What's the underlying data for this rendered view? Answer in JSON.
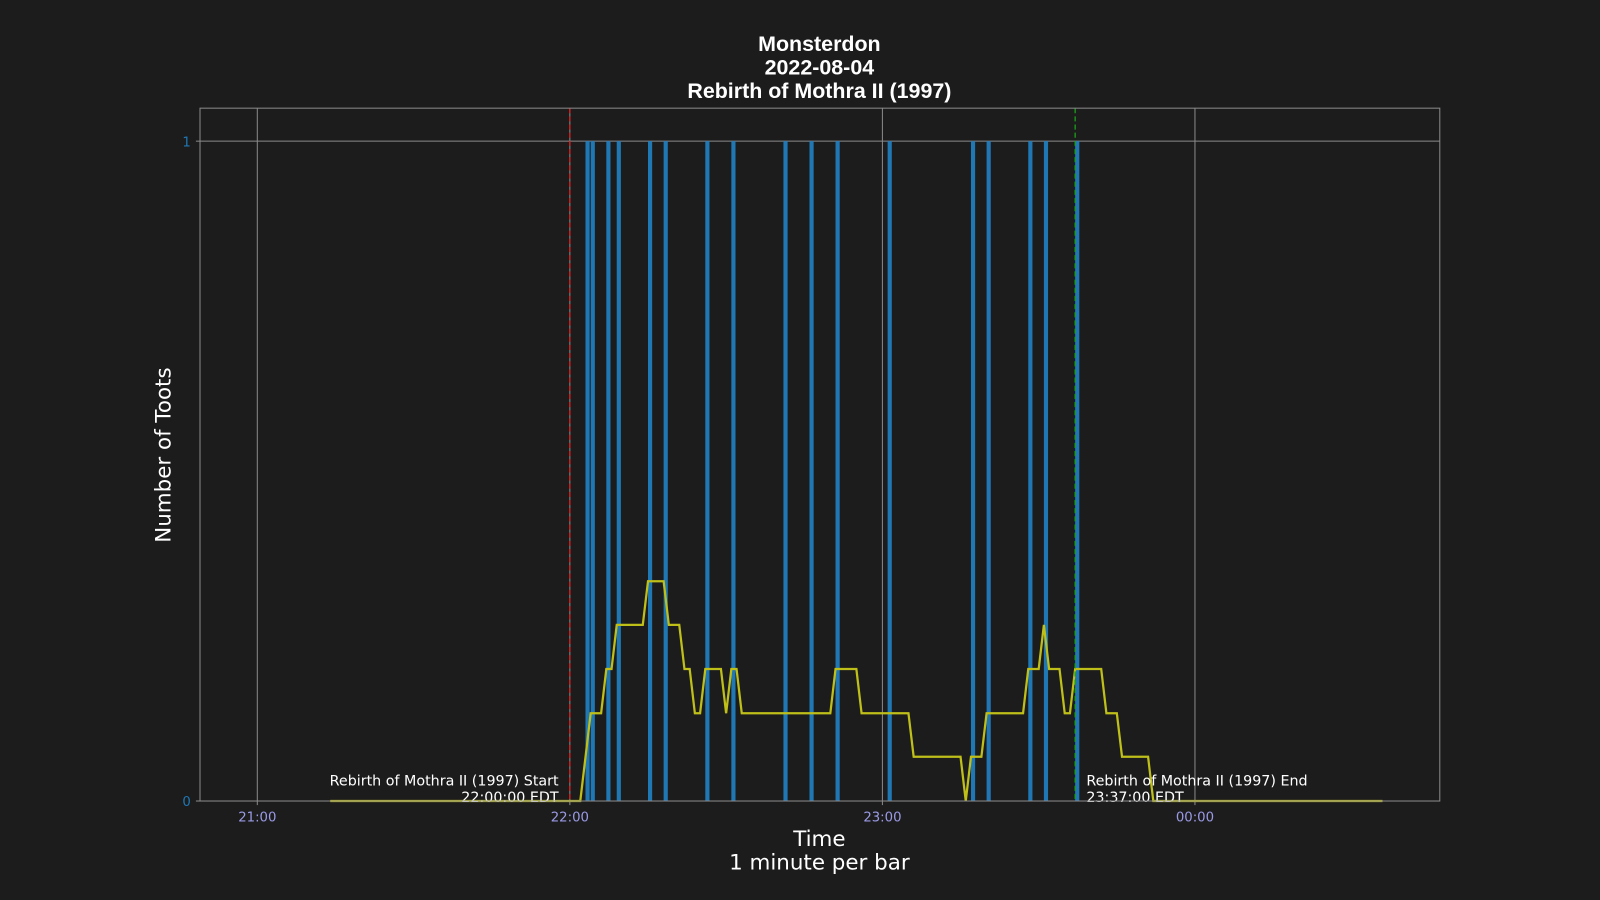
{
  "chart_data": {
    "type": "bar",
    "title": [
      "Monsterdon",
      "2022-08-04",
      "Rebirth of Mothra II (1997)"
    ],
    "xlabel": [
      "Time",
      "1 minute per bar"
    ],
    "ylabel": "Number of Toots",
    "xlim": [
      1249,
      1487
    ],
    "ylim": [
      0,
      1.05
    ],
    "xticks": [
      {
        "value": 1260,
        "label": "21:00"
      },
      {
        "value": 1320,
        "label": "22:00"
      },
      {
        "value": 1380,
        "label": "23:00"
      },
      {
        "value": 1440,
        "label": "00:00"
      }
    ],
    "yticks": [
      0,
      1
    ],
    "grid": true,
    "bars": {
      "color": "#1f77b4",
      "x": [
        1323,
        1324,
        1327,
        1329,
        1335,
        1338,
        1346,
        1351,
        1361,
        1366,
        1371,
        1381,
        1397,
        1400,
        1408,
        1411,
        1417
      ],
      "values": [
        1,
        1,
        1,
        1,
        1,
        1,
        1,
        1,
        1,
        1,
        1,
        1,
        1,
        1,
        1,
        1,
        1
      ]
    },
    "line": {
      "color": "#bfbf1a",
      "x": [
        1274,
        1322,
        1324,
        1326,
        1327,
        1328,
        1329,
        1334,
        1335,
        1338,
        1339,
        1341,
        1342,
        1343,
        1344,
        1345,
        1346,
        1349,
        1350,
        1351,
        1352,
        1353,
        1370,
        1371,
        1375,
        1376,
        1385,
        1386,
        1395,
        1396,
        1397,
        1399,
        1400,
        1407,
        1408,
        1410,
        1411,
        1412,
        1414,
        1415,
        1416,
        1417,
        1422,
        1423,
        1425,
        1426,
        1431,
        1432,
        1476
      ],
      "values": [
        0,
        0,
        0.133,
        0.133,
        0.2,
        0.2,
        0.267,
        0.267,
        0.333,
        0.333,
        0.267,
        0.267,
        0.2,
        0.2,
        0.133,
        0.133,
        0.2,
        0.2,
        0.133,
        0.2,
        0.2,
        0.133,
        0.133,
        0.2,
        0.2,
        0.133,
        0.133,
        0.067,
        0.067,
        0,
        0.067,
        0.067,
        0.133,
        0.133,
        0.2,
        0.2,
        0.267,
        0.2,
        0.2,
        0.133,
        0.133,
        0.2,
        0.2,
        0.133,
        0.133,
        0.067,
        0.067,
        0,
        0
      ]
    },
    "markers": [
      {
        "x": 1320,
        "color": "#e31a1c",
        "text": [
          "Rebirth of Mothra II (1997) Start",
          "22:00:00 EDT"
        ],
        "align": "right"
      },
      {
        "x": 1417,
        "color": "#1a9e1a",
        "text": [
          "Rebirth of Mothra II (1997) End",
          "23:37:00 EDT"
        ],
        "align": "left"
      }
    ]
  }
}
